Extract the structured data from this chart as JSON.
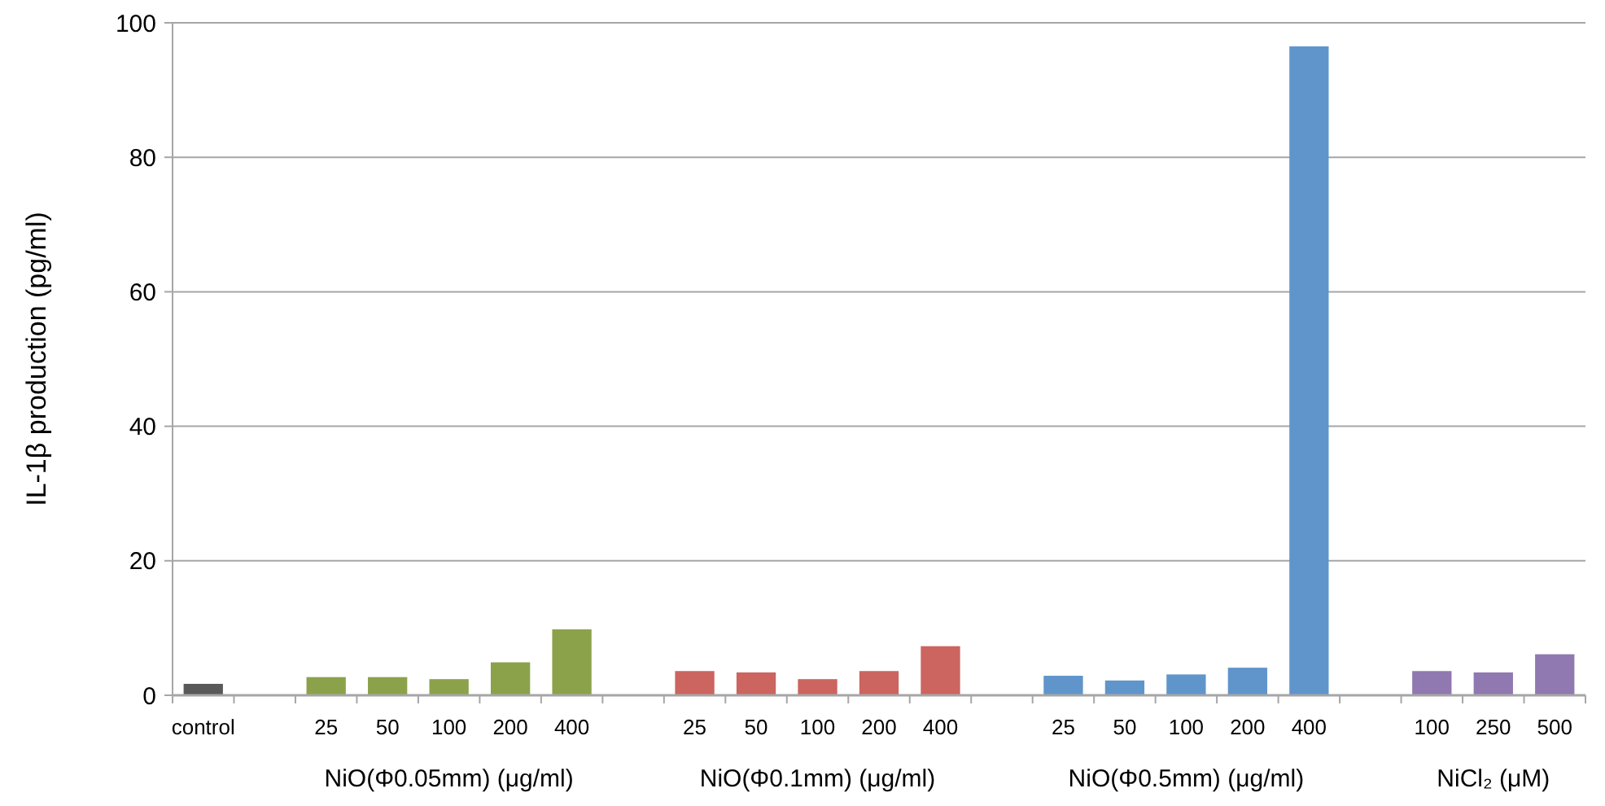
{
  "chart_data": {
    "type": "bar",
    "ylabel": "IL-1β production (pg/ml)",
    "categories": [
      "control",
      null,
      "25",
      "50",
      "100",
      "200",
      "400",
      null,
      "25",
      "50",
      "100",
      "200",
      "400",
      null,
      "25",
      "50",
      "100",
      "200",
      "400",
      null,
      "100",
      "250",
      "500"
    ],
    "values": [
      1.7,
      null,
      2.7,
      2.7,
      2.4,
      4.9,
      9.8,
      null,
      3.6,
      3.4,
      2.4,
      3.6,
      7.3,
      null,
      2.9,
      2.2,
      3.1,
      4.1,
      96.5,
      null,
      3.6,
      3.4,
      6.1
    ],
    "colors": [
      "#595959",
      null,
      "#8ba24a",
      "#8ba24a",
      "#8ba24a",
      "#8ba24a",
      "#8ba24a",
      null,
      "#cc6460",
      "#cc6460",
      "#cc6460",
      "#cc6460",
      "#cc6460",
      null,
      "#6095cb",
      "#6095cb",
      "#6095cb",
      "#6095cb",
      "#6095cb",
      null,
      "#9078b0",
      "#9078b0",
      "#9078b0"
    ],
    "ylim": [
      0,
      100
    ],
    "yticks": [
      0,
      20,
      40,
      60,
      80,
      100
    ],
    "grid": "y",
    "annotations": [
      "NiO(Φ0.05mm) (μg/ml)",
      "NiO(Φ0.1mm) (μg/ml)",
      "NiO(Φ0.5mm) (μg/ml)",
      "NiCl₂ (μM)"
    ]
  }
}
